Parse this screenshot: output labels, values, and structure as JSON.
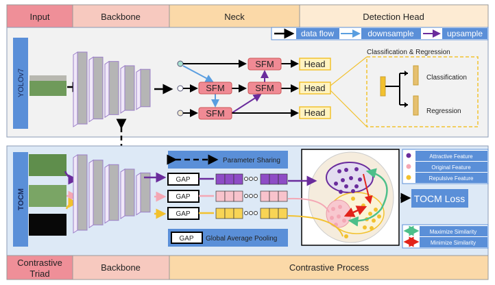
{
  "header": {
    "input": "Input",
    "backbone": "Backbone",
    "neck": "Neck",
    "detection_head": "Detection Head"
  },
  "legend": {
    "data_flow": "data flow",
    "downsample": "downsample",
    "upsample": "upsample"
  },
  "yolo": {
    "side_label": "YOLOv7",
    "sfm": "SFM",
    "head": "Head",
    "cls_reg_title": "Classification & Regression",
    "classification": "Classification",
    "regression": "Regression"
  },
  "tocm": {
    "side_label": "TOCM",
    "parameter_sharing": "Parameter Sharing",
    "gap": "GAP",
    "gap_legend": "Global Average Pooling",
    "loss": "TOCM Loss",
    "features": [
      "Attractive Feature",
      "Original Feature",
      "Repulsive Feature"
    ],
    "similarity": [
      "Maximize Similarity",
      "Minimize Similarity"
    ]
  },
  "footer": {
    "triad_line1": "Contrastive",
    "triad_line2": "Triad",
    "backbone": "Backbone",
    "process": "Contrastive Process"
  },
  "colors": {
    "blue": "#5a8fd8",
    "purple": "#6a2c9c",
    "pink": "#f4a7b4",
    "yellow": "#f2c12e",
    "green": "#4dbf8a",
    "red": "#e2231a"
  }
}
